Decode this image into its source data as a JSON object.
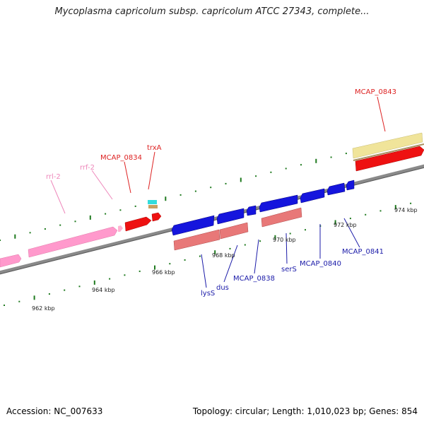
{
  "title": "Mycoplasma capricolum subsp. capricolum ATCC 27343, complete...",
  "footer": {
    "accession": "Accession: NC_007633",
    "summary": "Topology: circular; Length: 1,010,023 bp; Genes: 854"
  },
  "colors": {
    "backbone": "#8a8a8a",
    "tick": "#1f7a1f",
    "rna": "#ff99cc",
    "plus_gene": "#ee1111",
    "minus_gene": "#1515dd",
    "plus_cds_rna": "#e87878",
    "label_plus": "#dd2222",
    "label_minus": "#1a1aa8",
    "label_rna": "#ee88bb",
    "yellow": "#f0e49a"
  },
  "kbp_labels": [
    "962 kbp",
    "964 kbp",
    "966 kbp",
    "968 kbp",
    "970 kbp",
    "972 kbp",
    "974 kbp"
  ],
  "gene_labels_top": [
    "rrl-2",
    "rrf-2",
    "MCAP_0834",
    "trxA",
    "MCAP_0843"
  ],
  "gene_labels_bottom": [
    "lysS",
    "dus",
    "MCAP_0838",
    "serS",
    "MCAP_0840",
    "MCAP_0841"
  ]
}
